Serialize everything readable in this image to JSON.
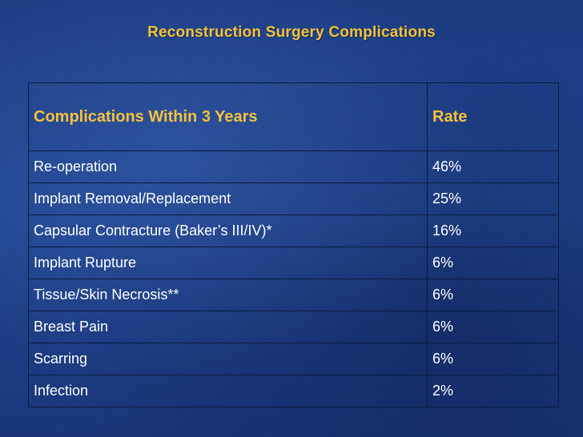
{
  "slide": {
    "title": "Reconstruction Surgery Complications"
  },
  "table": {
    "headers": [
      "Complications Within 3 Years",
      "Rate"
    ],
    "rows": [
      {
        "complication": "Re-operation",
        "rate": "46%"
      },
      {
        "complication": "Implant Removal/Replacement",
        "rate": "25%"
      },
      {
        "complication": "Capsular Contracture (Baker’s III/IV)*",
        "rate": "16%"
      },
      {
        "complication": "Implant Rupture",
        "rate": "6%"
      },
      {
        "complication": "Tissue/Skin Necrosis**",
        "rate": "6%"
      },
      {
        "complication": "Breast Pain",
        "rate": "6%"
      },
      {
        "complication": "Scarring",
        "rate": "6%"
      },
      {
        "complication": "Infection",
        "rate": "2%"
      }
    ]
  },
  "colors": {
    "background": "#1c3e86",
    "accent": "#f5c23a",
    "text": "#ffffff",
    "grid": "#0b1a40"
  }
}
